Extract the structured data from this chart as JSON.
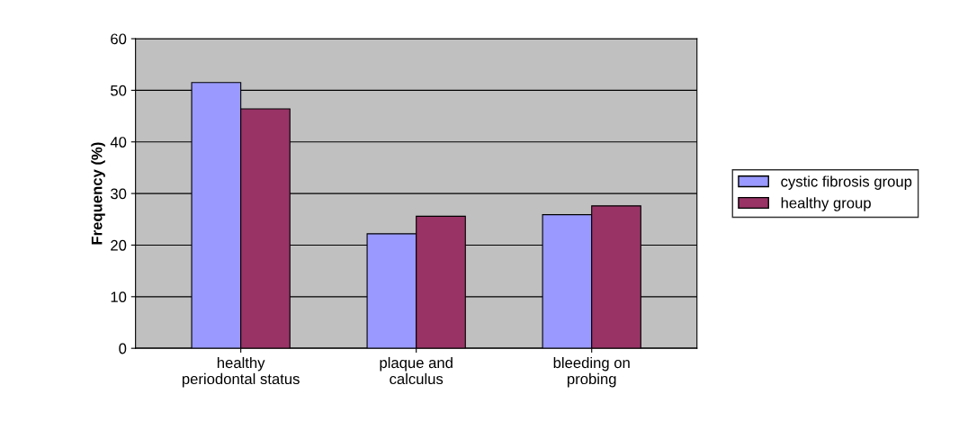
{
  "chart_data": {
    "type": "bar",
    "ylabel": "Frequency (%)",
    "categories": [
      "healthy\nperiodontal status",
      "plaque and\ncalculus",
      "bleeding on\nprobing"
    ],
    "series": [
      {
        "name": "cystic fibrosis group",
        "color": "#9999ff",
        "values": [
          51.5,
          22.2,
          25.9
        ]
      },
      {
        "name": "healthy group",
        "color": "#993366",
        "values": [
          46.4,
          25.6,
          27.6
        ]
      }
    ],
    "ylim": [
      0,
      60
    ],
    "yticks": [
      0,
      10,
      20,
      30,
      40,
      50,
      60
    ],
    "grid": "y",
    "legend": "right"
  }
}
